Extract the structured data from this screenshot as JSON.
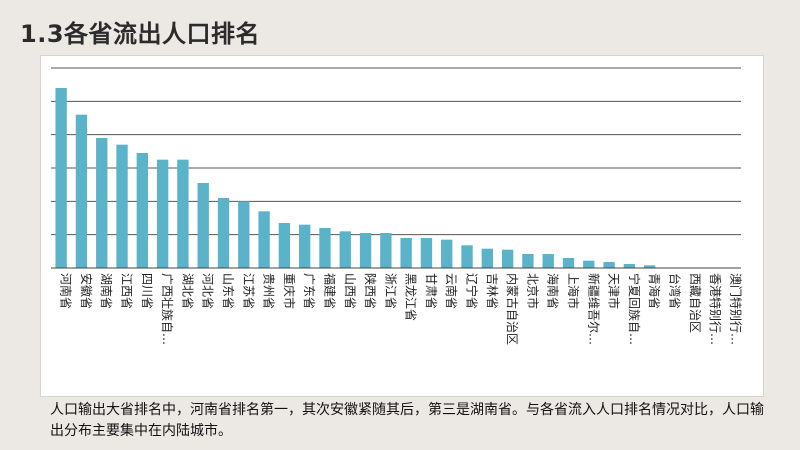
{
  "slide": {
    "title": "1.3各省流出人口排名",
    "caption": "人口输出大省排名中，河南省排名第一，其次安徽紧随其后，第三是湖南省。与各省流入人口排名情况对比，人口输出分布主要集中在内陆城市。"
  },
  "chart_data": {
    "type": "bar",
    "title": "",
    "xlabel": "",
    "ylabel": "",
    "grid": true,
    "y_axis_labels_visible": false,
    "ylim": [
      0,
      6
    ],
    "bar_color": "#5bb3c9",
    "grid_color": "#555555",
    "categories": [
      "河南省",
      "安徽省",
      "湖南省",
      "江西省",
      "四川省",
      "广西壮族自…",
      "湖北省",
      "河北省",
      "山东省",
      "江苏省",
      "贵州省",
      "重庆市",
      "广东省",
      "福建省",
      "山西省",
      "陕西省",
      "浙江省",
      "黑龙江省",
      "甘肃省",
      "云南省",
      "辽宁省",
      "吉林省",
      "内蒙古自治区",
      "北京市",
      "海南省",
      "上海市",
      "新疆维吾尔…",
      "天津市",
      "宁夏回族自…",
      "青海省",
      "台湾省",
      "西藏自治区",
      "香港特别行…",
      "澳门特别行…"
    ],
    "values": [
      5.4,
      4.6,
      3.9,
      3.7,
      3.45,
      3.25,
      3.25,
      2.55,
      2.1,
      2.0,
      1.7,
      1.35,
      1.3,
      1.2,
      1.1,
      1.05,
      1.05,
      0.9,
      0.9,
      0.85,
      0.68,
      0.58,
      0.55,
      0.42,
      0.42,
      0.3,
      0.22,
      0.18,
      0.12,
      0.08,
      0.01,
      0.01,
      0.01,
      0.0
    ]
  }
}
